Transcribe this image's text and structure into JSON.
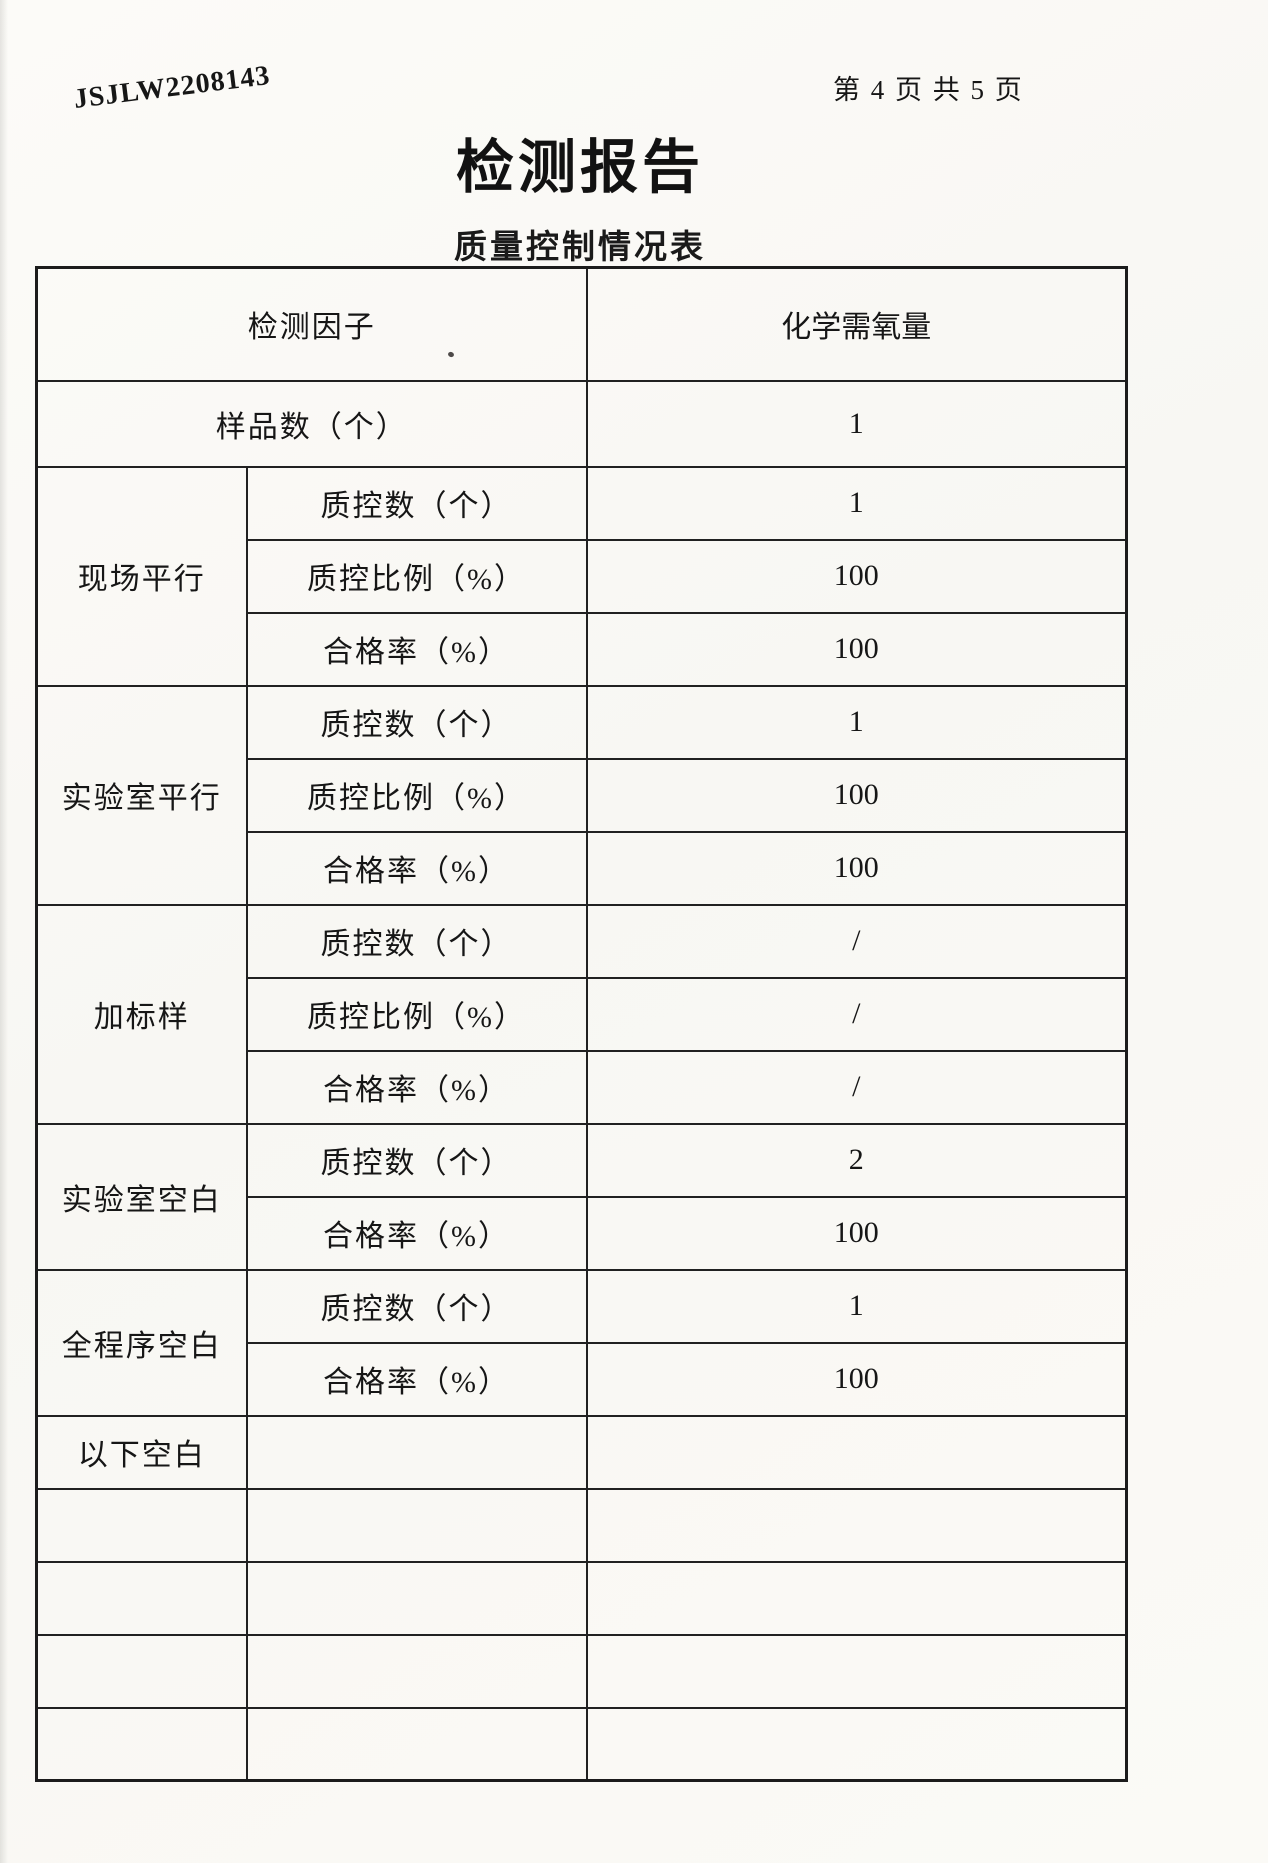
{
  "header": {
    "report_no": "JSJLW2208143",
    "page_indicator": "第 4 页 共 5 页",
    "title": "检测报告",
    "subtitle": "质量控制情况表"
  },
  "table": {
    "header_row": {
      "label": "检测因子",
      "value": "化学需氧量"
    },
    "sample_row": {
      "label": "样品数（个）",
      "value": "1"
    },
    "groups": [
      {
        "name": "现场平行",
        "rows": [
          {
            "label": "质控数（个）",
            "value": "1"
          },
          {
            "label": "质控比例（%）",
            "value": "100"
          },
          {
            "label": "合格率（%）",
            "value": "100"
          }
        ]
      },
      {
        "name": "实验室平行",
        "rows": [
          {
            "label": "质控数（个）",
            "value": "1"
          },
          {
            "label": "质控比例（%）",
            "value": "100"
          },
          {
            "label": "合格率（%）",
            "value": "100"
          }
        ]
      },
      {
        "name": "加标样",
        "rows": [
          {
            "label": "质控数（个）",
            "value": "/"
          },
          {
            "label": "质控比例（%）",
            "value": "/"
          },
          {
            "label": "合格率（%）",
            "value": "/"
          }
        ]
      },
      {
        "name": "实验室空白",
        "rows": [
          {
            "label": "质控数（个）",
            "value": "2"
          },
          {
            "label": "合格率（%）",
            "value": "100"
          }
        ]
      },
      {
        "name": "全程序空白",
        "rows": [
          {
            "label": "质控数（个）",
            "value": "1"
          },
          {
            "label": "合格率（%）",
            "value": "100"
          }
        ]
      }
    ],
    "trailing_row_label": "以下空白",
    "empty_row_count": 4
  }
}
